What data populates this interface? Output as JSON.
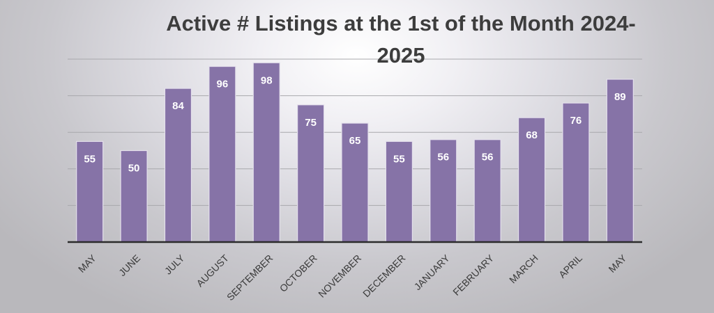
{
  "chart_data": {
    "type": "bar",
    "title": "Active # Listings at the 1st of the Month 2024-2025",
    "title_lines": [
      "Active # Listings at the 1st of the Month 2024-",
      "2025"
    ],
    "categories": [
      "MAY",
      "JUNE",
      "JULY",
      "AUGUST",
      "SEPTEMBER",
      "OCTOBER",
      "NOVEMBER",
      "DECEMBER",
      "JANUARY",
      "FEBRUARY",
      "MARCH",
      "APRIL",
      "MAY"
    ],
    "values": [
      55,
      50,
      84,
      96,
      98,
      75,
      65,
      55,
      56,
      56,
      68,
      76,
      89
    ],
    "xlabel": "",
    "ylabel": "",
    "ylim": [
      0,
      100
    ],
    "grid": true,
    "data_labels": true,
    "legend": "none",
    "colors": {
      "bar": "#8673a7",
      "bar_edge": "#e4e0ec",
      "gridline": "#a8a8ac",
      "axis": "#2b2b2b",
      "title": "#3d3d3d"
    }
  }
}
